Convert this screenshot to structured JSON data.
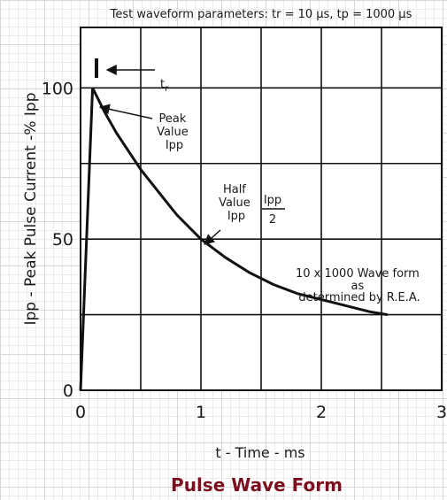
{
  "chart_data": {
    "type": "line",
    "title": "Test waveform parameters: tr = 10 μs, tp = 1000 μs",
    "subtitle": "Pulse Wave Form",
    "xlabel": "t - Time - ms",
    "ylabel": "Ipp - Peak Pulse Current -% Ipp",
    "xlim": [
      0,
      3
    ],
    "ylim": [
      0,
      120
    ],
    "x_ticks": [
      "0",
      "1",
      "2",
      "3"
    ],
    "y_ticks": [
      "0",
      "50",
      "100"
    ],
    "grid": true,
    "series": [
      {
        "x": [
          0,
          0.1,
          0.2,
          0.3,
          0.4,
          0.5,
          0.6,
          0.7,
          0.8,
          0.9,
          1.0,
          1.2,
          1.4,
          1.6,
          1.8,
          2.0,
          2.2,
          2.4,
          2.55
        ],
        "y": [
          0,
          100,
          92,
          85,
          79,
          73,
          68,
          63,
          58,
          54,
          50,
          44,
          39,
          35,
          32,
          30,
          28,
          26,
          25
        ]
      }
    ],
    "annotations": {
      "tr": {
        "t": "t",
        "sub": "r"
      },
      "peak": [
        "Peak",
        "Value",
        "Ipp"
      ],
      "half": [
        "Half",
        "Value",
        "Ipp"
      ],
      "fraction": {
        "numerator": "Ipp",
        "denominator": "2"
      },
      "waveform": [
        "10 x 1000 Wave form",
        "as",
        "determined by R.E.A."
      ]
    }
  }
}
